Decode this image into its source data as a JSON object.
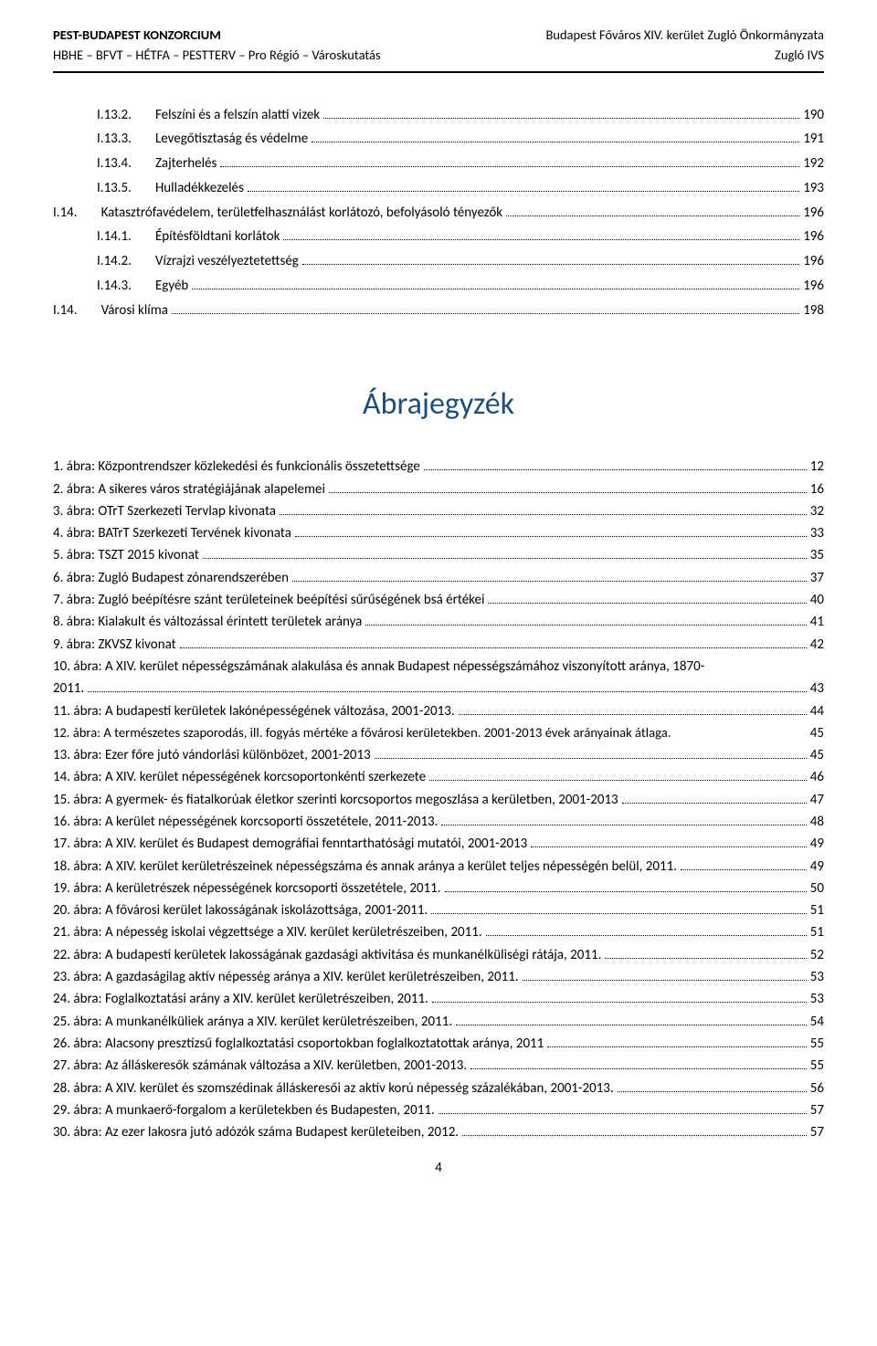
{
  "header": {
    "l1_left": "PEST-BUDAPEST KONZORCIUM",
    "l1_right": "Budapest Főváros XIV. kerület Zugló Önkormányzata",
    "l2_left": "HBHE – BFVT – HÉTFA – PESTTERV – Pro Régió – Városkutatás",
    "l2_right": "Zugló IVS"
  },
  "toc1": [
    {
      "num": "I.13.2.",
      "title": "Felszíni és a felszín alatti vizek",
      "page": "190",
      "indent": true
    },
    {
      "num": "I.13.3.",
      "title": "Levegőtisztaság és védelme",
      "page": "191",
      "indent": true
    },
    {
      "num": "I.13.4.",
      "title": "Zajterhelés",
      "page": "192",
      "indent": true
    },
    {
      "num": "I.13.5.",
      "title": "Hulladékkezelés",
      "page": "193",
      "indent": true
    },
    {
      "num": "I.14.",
      "title": "Katasztrófavédelem, területfelhasználást korlátozó, befolyásoló tényezők",
      "page": "196",
      "indent": false
    },
    {
      "num": "I.14.1.",
      "title": "Építésföldtani korlátok",
      "page": "196",
      "indent": true
    },
    {
      "num": "I.14.2.",
      "title": "Vízrajzi veszélyeztetettség",
      "page": "196",
      "indent": true
    },
    {
      "num": "I.14.3.",
      "title": "Egyéb",
      "page": "196",
      "indent": true
    },
    {
      "num": "I.14.",
      "title": "Városi klíma",
      "page": "198",
      "indent": false
    }
  ],
  "figures_heading": "Ábrajegyzék",
  "figures": [
    {
      "title": "1. ábra: Központrendszer közlekedési és funkcionális összetettsége",
      "page": "12"
    },
    {
      "title": "2. ábra: A sikeres város stratégiájának alapelemei",
      "page": "16"
    },
    {
      "title": "3. ábra: OTrT Szerkezeti Tervlap kivonata",
      "page": "32"
    },
    {
      "title": "4. ábra: BATrT Szerkezeti Tervének kivonata",
      "page": "33"
    },
    {
      "title": "5. ábra: TSZT 2015 kivonat",
      "page": "35"
    },
    {
      "title": "6. ábra: Zugló Budapest zónarendszerében",
      "page": "37"
    },
    {
      "title": "7. ábra: Zugló beépítésre szánt területeinek beépítési sűrűségének bsá értékei",
      "page": "40"
    },
    {
      "title": "8. ábra: Kialakult és változással  érintett területek aránya",
      "page": "41"
    },
    {
      "title": "9. ábra: ZKVSZ kivonat",
      "page": "42"
    },
    {
      "title_line1": "10. ábra: A XIV. kerület népességszámának alakulása és annak Budapest népességszámához viszonyított aránya, 1870-",
      "title_line2": "2011.",
      "page": "43",
      "multiline": true
    },
    {
      "title": "11. ábra: A budapesti kerületek lakónépességének változása, 2001-2013.",
      "page": "44"
    },
    {
      "title": "12. ábra: A természetes szaporodás, ill. fogyás mértéke a fővárosi kerületekben. 2001-2013 évek arányainak átlaga.",
      "page": "45",
      "tight": true
    },
    {
      "title": "13. ábra: Ezer főre jutó vándorlási különbözet, 2001-2013",
      "page": "45"
    },
    {
      "title": "14. ábra: A XIV. kerület népességének korcsoportonkénti szerkezete",
      "page": "46"
    },
    {
      "title": "15. ábra: A gyermek- és fiatalkorúak életkor szerinti korcsoportos megoszlása a kerületben, 2001-2013",
      "page": "47"
    },
    {
      "title": "16. ábra: A kerület népességének korcsoporti összetétele, 2011-2013.",
      "page": "48"
    },
    {
      "title": "17. ábra: A XIV. kerület és Budapest demográfiai fenntarthatósági mutatói, 2001-2013",
      "page": "49"
    },
    {
      "title": "18. ábra: A XIV. kerület kerületrészeinek népességszáma és annak aránya a kerület teljes népességén belül, 2011.",
      "page": "49"
    },
    {
      "title": "19. ábra: A kerületrészek népességének korcsoporti összetétele, 2011.",
      "page": "50"
    },
    {
      "title": "20. ábra: A fővárosi kerület lakosságának iskolázottsága, 2001-2011.",
      "page": "51"
    },
    {
      "title": "21. ábra: A népesség iskolai végzettsége a XIV. kerület kerületrészeiben, 2011.",
      "page": "51"
    },
    {
      "title": "22. ábra: A budapesti kerületek lakosságának gazdasági aktivitása és munkanélküliségi rátája, 2011.",
      "page": "52"
    },
    {
      "title": "23. ábra: A gazdaságilag aktív népesség aránya a XIV. kerület kerületrészeiben, 2011.",
      "page": "53"
    },
    {
      "title": "24. ábra: Foglalkoztatási arány a XIV. kerület kerületrészeiben, 2011.",
      "page": "53"
    },
    {
      "title": "25. ábra: A munkanélküliek aránya a XIV. kerület kerületrészeiben, 2011.",
      "page": "54"
    },
    {
      "title": "26. ábra: Alacsony presztízsű foglalkoztatási csoportokban foglalkoztatottak aránya, 2011",
      "page": "55"
    },
    {
      "title": "27. ábra: Az álláskeresők számának változása a XIV. kerületben, 2001-2013.",
      "page": "55"
    },
    {
      "title": "28. ábra: A XIV. kerület és szomszédinak álláskeresői az aktív korú népesség százalékában, 2001-2013.",
      "page": "56"
    },
    {
      "title": "29. ábra: A munkaerő-forgalom a kerületekben és Budapesten, 2011.",
      "page": "57"
    },
    {
      "title": "30. ábra: Az ezer lakosra jutó adózók száma Budapest kerületeiben, 2012.",
      "page": "57"
    }
  ],
  "footer_page": "4"
}
